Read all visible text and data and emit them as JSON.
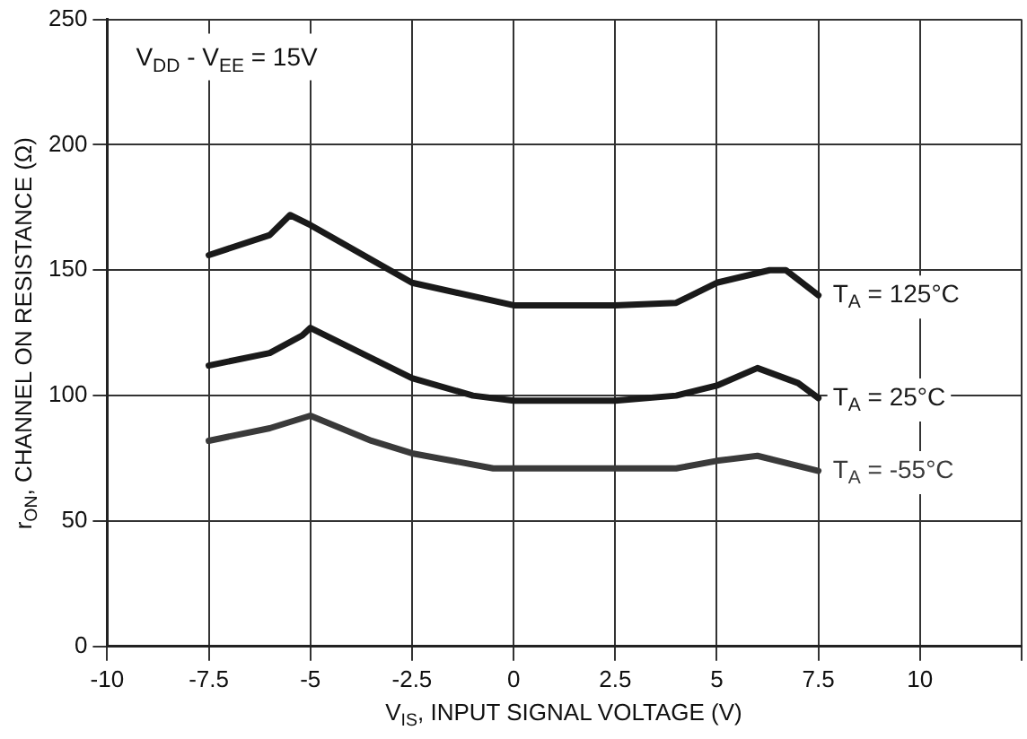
{
  "chart_data": {
    "type": "line",
    "xlabel": "V$_{IS}$, INPUT SIGNAL VOLTAGE (V)",
    "ylabel": "r$_{ON}$, CHANNEL ON RESISTANCE (Ω)",
    "annotations": [
      "V$_{DD}$ - V$_{EE}$ = 15V"
    ],
    "xlim": [
      -10,
      12.5
    ],
    "xticks": [
      -10,
      -7.5,
      -5,
      -2.5,
      0,
      2.5,
      5,
      7.5,
      10,
      {
        "value": 12.5,
        "label": null
      }
    ],
    "ylim": [
      0,
      250
    ],
    "yticks": [
      0,
      50,
      100,
      150,
      200,
      250
    ],
    "grid": true,
    "legend": false,
    "marker": "none",
    "line_style": "solid",
    "series": [
      {
        "name": "T$_{A}$ = 125°C",
        "color": "#1a1a1a",
        "x": [
          -7.5,
          -6,
          -5.5,
          -5,
          -2.5,
          0,
          2.5,
          4,
          5,
          6.3,
          6.7,
          7.5
        ],
        "values": [
          156,
          164,
          172,
          168,
          145,
          136,
          136,
          137,
          145,
          150,
          150,
          140
        ]
      },
      {
        "name": "T$_{A}$ = 25°C",
        "color": "#1a1a1a",
        "x": [
          -7.5,
          -6,
          -5.2,
          -5,
          -2.5,
          -1,
          0,
          2.5,
          4,
          5,
          6,
          7,
          7.5
        ],
        "values": [
          112,
          117,
          124,
          127,
          107,
          100,
          98,
          98,
          100,
          104,
          111,
          105,
          99
        ]
      },
      {
        "name": "T$_{A}$ = -55°C",
        "color": "#3a3a3a",
        "x": [
          -7.5,
          -6,
          -5,
          -3.5,
          -2.5,
          -0.5,
          0,
          2.5,
          4,
          5,
          6,
          7.5
        ],
        "values": [
          82,
          87,
          92,
          82,
          77,
          71,
          71,
          71,
          71,
          74,
          76,
          70
        ]
      }
    ]
  }
}
